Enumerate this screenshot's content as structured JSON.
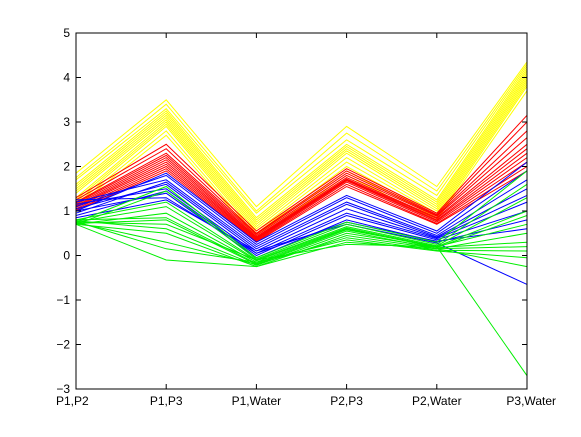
{
  "chart_data": {
    "type": "line",
    "title": "",
    "xlabel": "",
    "ylabel": "",
    "categories": [
      "P1,P2",
      "P1,P3",
      "P1,Water",
      "P2,P3",
      "P2,Water",
      "P3,Water"
    ],
    "ylim": [
      -3,
      5
    ],
    "yticks": [
      -3,
      -2,
      -1,
      0,
      1,
      2,
      3,
      4,
      5
    ],
    "grid": false,
    "legend": "none",
    "series": [
      {
        "color": "#ffff00",
        "values": [
          1.85,
          3.5,
          1.1,
          2.9,
          1.55,
          4.35
        ]
      },
      {
        "color": "#ffff00",
        "values": [
          1.75,
          3.4,
          1.0,
          2.75,
          1.45,
          4.3
        ]
      },
      {
        "color": "#ffff00",
        "values": [
          1.7,
          3.3,
          0.95,
          2.6,
          1.35,
          4.25
        ]
      },
      {
        "color": "#ffff00",
        "values": [
          1.6,
          3.25,
          0.85,
          2.5,
          1.25,
          4.2
        ]
      },
      {
        "color": "#ffff00",
        "values": [
          1.55,
          3.2,
          0.8,
          2.45,
          1.2,
          4.15
        ]
      },
      {
        "color": "#ffff00",
        "values": [
          1.5,
          3.15,
          0.75,
          2.4,
          1.15,
          4.1
        ]
      },
      {
        "color": "#ffff00",
        "values": [
          1.45,
          3.1,
          0.7,
          2.35,
          1.1,
          4.05
        ]
      },
      {
        "color": "#ffff00",
        "values": [
          1.4,
          3.05,
          0.65,
          2.3,
          1.05,
          4.0
        ]
      },
      {
        "color": "#ffff00",
        "values": [
          1.3,
          3.0,
          0.6,
          2.2,
          1.0,
          3.95
        ]
      },
      {
        "color": "#ffff00",
        "values": [
          1.25,
          2.95,
          0.55,
          2.1,
          0.95,
          3.9
        ]
      },
      {
        "color": "#ffff00",
        "values": [
          1.2,
          2.9,
          0.5,
          2.0,
          0.9,
          3.85
        ]
      },
      {
        "color": "#ffff00",
        "values": [
          1.15,
          2.8,
          0.45,
          1.9,
          0.85,
          3.8
        ]
      },
      {
        "color": "#ffff00",
        "values": [
          1.1,
          2.7,
          0.4,
          1.8,
          0.8,
          3.7
        ]
      },
      {
        "color": "#ff0000",
        "values": [
          1.3,
          2.5,
          0.55,
          1.95,
          0.95,
          3.15
        ]
      },
      {
        "color": "#ff0000",
        "values": [
          1.25,
          2.4,
          0.5,
          1.9,
          0.92,
          3.0
        ]
      },
      {
        "color": "#ff0000",
        "values": [
          1.2,
          2.3,
          0.48,
          1.85,
          0.9,
          2.8
        ]
      },
      {
        "color": "#ff0000",
        "values": [
          1.18,
          2.25,
          0.45,
          1.8,
          0.88,
          2.65
        ]
      },
      {
        "color": "#ff0000",
        "values": [
          1.15,
          2.2,
          0.42,
          1.75,
          0.85,
          2.5
        ]
      },
      {
        "color": "#ff0000",
        "values": [
          1.12,
          2.15,
          0.4,
          1.72,
          0.83,
          2.4
        ]
      },
      {
        "color": "#ff0000",
        "values": [
          1.1,
          2.1,
          0.38,
          1.7,
          0.8,
          2.3
        ]
      },
      {
        "color": "#ff0000",
        "values": [
          1.08,
          2.05,
          0.36,
          1.68,
          0.78,
          2.2
        ]
      },
      {
        "color": "#ff0000",
        "values": [
          1.05,
          2.0,
          0.34,
          1.65,
          0.75,
          2.1
        ]
      },
      {
        "color": "#ff0000",
        "values": [
          1.02,
          1.95,
          0.32,
          1.6,
          0.72,
          2.0
        ]
      },
      {
        "color": "#ff0000",
        "values": [
          1.0,
          1.9,
          0.3,
          1.55,
          0.7,
          1.9
        ]
      },
      {
        "color": "#0000ff",
        "values": [
          1.0,
          1.85,
          0.3,
          1.35,
          0.55,
          2.1
        ]
      },
      {
        "color": "#0000ff",
        "values": [
          1.1,
          1.8,
          0.25,
          1.3,
          0.5,
          1.9
        ]
      },
      {
        "color": "#0000ff",
        "values": [
          1.2,
          1.7,
          0.2,
          1.2,
          0.45,
          1.7
        ]
      },
      {
        "color": "#0000ff",
        "values": [
          0.95,
          1.65,
          0.15,
          1.15,
          0.42,
          1.5
        ]
      },
      {
        "color": "#0000ff",
        "values": [
          1.05,
          1.6,
          0.1,
          1.05,
          0.4,
          1.35
        ]
      },
      {
        "color": "#0000ff",
        "values": [
          1.15,
          1.5,
          0.05,
          0.95,
          0.38,
          1.2
        ]
      },
      {
        "color": "#0000ff",
        "values": [
          0.9,
          1.45,
          0.0,
          0.9,
          0.35,
          1.0
        ]
      },
      {
        "color": "#0000ff",
        "values": [
          1.0,
          1.4,
          -0.05,
          0.8,
          0.3,
          0.8
        ]
      },
      {
        "color": "#0000ff",
        "values": [
          1.25,
          1.3,
          0.05,
          0.75,
          0.32,
          0.6
        ]
      },
      {
        "color": "#0000ff",
        "values": [
          0.85,
          1.25,
          0.1,
          0.7,
          0.28,
          -0.65
        ]
      },
      {
        "color": "#00ee00",
        "values": [
          0.75,
          1.55,
          -0.05,
          0.75,
          0.3,
          1.9
        ]
      },
      {
        "color": "#00ee00",
        "values": [
          0.7,
          1.45,
          -0.08,
          0.7,
          0.25,
          1.6
        ]
      },
      {
        "color": "#00ee00",
        "values": [
          0.8,
          1.2,
          -0.1,
          0.65,
          0.22,
          1.3
        ]
      },
      {
        "color": "#00ee00",
        "values": [
          0.75,
          1.1,
          -0.12,
          0.62,
          0.2,
          1.0
        ]
      },
      {
        "color": "#00ee00",
        "values": [
          0.7,
          0.95,
          -0.15,
          0.6,
          0.18,
          0.9
        ]
      },
      {
        "color": "#00ee00",
        "values": [
          0.8,
          0.85,
          -0.18,
          0.58,
          0.2,
          0.7
        ]
      },
      {
        "color": "#00ee00",
        "values": [
          0.72,
          0.8,
          -0.2,
          0.55,
          0.15,
          0.5
        ]
      },
      {
        "color": "#00ee00",
        "values": [
          0.78,
          0.6,
          -0.22,
          0.5,
          0.18,
          0.3
        ]
      },
      {
        "color": "#00ee00",
        "values": [
          0.7,
          0.5,
          -0.25,
          0.45,
          0.15,
          0.2
        ]
      },
      {
        "color": "#00ee00",
        "values": [
          0.74,
          0.3,
          -0.2,
          0.4,
          0.12,
          0.1
        ]
      },
      {
        "color": "#00ee00",
        "values": [
          0.76,
          0.15,
          -0.15,
          0.35,
          0.1,
          -0.05
        ]
      },
      {
        "color": "#00ee00",
        "values": [
          0.7,
          -0.1,
          -0.25,
          0.3,
          0.15,
          -0.25
        ]
      },
      {
        "color": "#00ee00",
        "values": [
          0.75,
          0.7,
          -0.1,
          0.25,
          0.2,
          -2.7
        ]
      }
    ]
  }
}
